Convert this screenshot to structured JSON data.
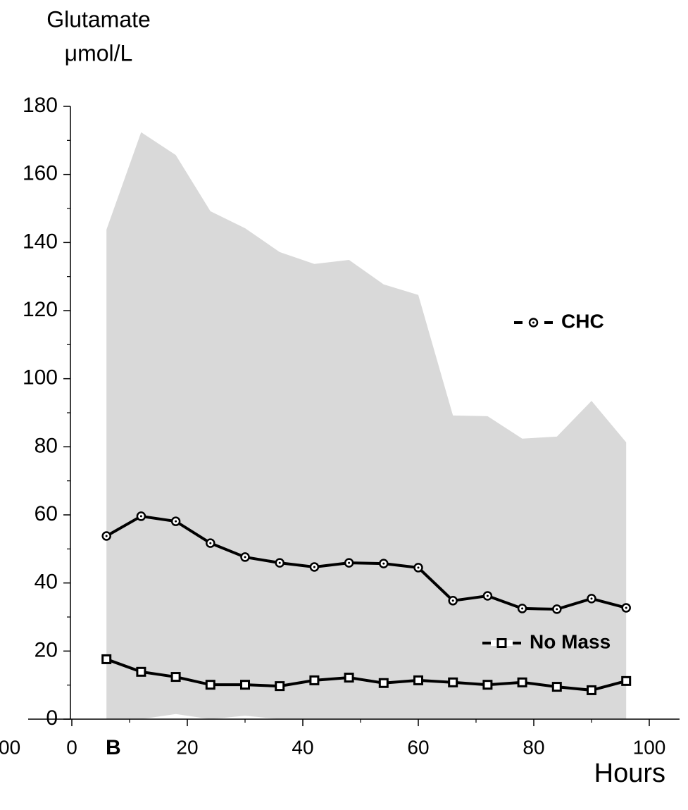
{
  "chart_data": {
    "type": "line",
    "ylabel": [
      "Glutamate",
      "μmol/L"
    ],
    "xlabel": "Hours",
    "annotations": [
      "B",
      "00"
    ],
    "x": [
      6,
      12,
      18,
      24,
      30,
      36,
      42,
      48,
      54,
      60,
      66,
      72,
      78,
      84,
      90,
      96
    ],
    "series": [
      {
        "name": "CHC",
        "color": "#000000",
        "marker": "circle",
        "values": [
          53.8,
          59.6,
          58.1,
          51.7,
          47.6,
          45.9,
          44.7,
          45.9,
          45.7,
          44.5,
          34.8,
          36.2,
          32.5,
          32.3,
          35.4,
          32.7
        ]
      },
      {
        "name": "No Mass",
        "color": "#000000",
        "marker": "square",
        "values": [
          17.6,
          13.9,
          12.4,
          10.1,
          10.1,
          9.7,
          11.4,
          12.2,
          10.6,
          11.4,
          10.8,
          10.1,
          10.8,
          9.5,
          8.5,
          11.2
        ]
      }
    ],
    "band": {
      "color": "#d9d9d9",
      "upper": [
        143.8,
        172.4,
        165.7,
        149.2,
        144.2,
        137.2,
        133.7,
        134.9,
        127.7,
        124.6,
        89.2,
        89.0,
        82.4,
        83.0,
        93.5,
        81.3
      ],
      "lower": [
        0,
        0,
        1.5,
        0,
        1,
        0,
        0,
        0,
        0,
        0,
        0,
        0,
        0,
        0,
        0,
        0
      ]
    },
    "xlim": [
      0,
      100
    ],
    "xticks": [
      0,
      20,
      40,
      60,
      80,
      100
    ],
    "xminor": [
      10,
      30,
      50,
      70,
      90
    ],
    "ylim": [
      0,
      180
    ],
    "yticks": [
      0,
      20,
      40,
      60,
      80,
      100,
      120,
      140,
      160,
      180
    ],
    "yminor": [
      10,
      30,
      50,
      70,
      90,
      110,
      130,
      150,
      170
    ]
  }
}
